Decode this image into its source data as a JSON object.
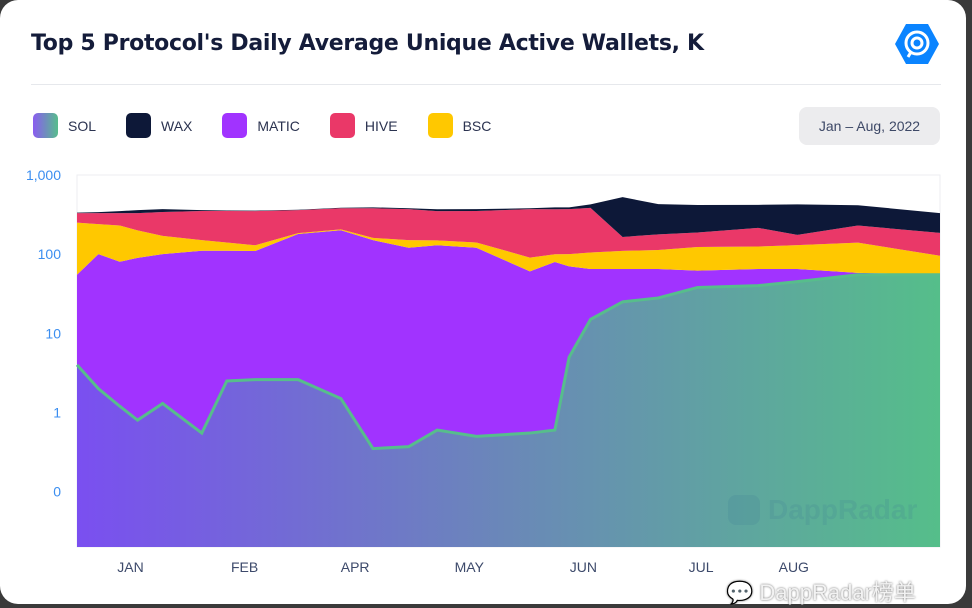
{
  "header": {
    "title": "Top 5 Protocol's Daily Average Unique Active Wallets, K",
    "date_range": "Jan – Aug, 2022"
  },
  "watermarks": {
    "chart": "DappRadar",
    "overlay": "DappRadar榜单"
  },
  "chart_data": {
    "type": "area",
    "stacked": true,
    "title": "Top 5 Protocol's Daily Average Unique Active Wallets, K",
    "yscale": "log",
    "ylim": [
      0.02,
      1000
    ],
    "yticks": [
      {
        "value": 1000,
        "label": "1,000"
      },
      {
        "value": 100,
        "label": "100"
      },
      {
        "value": 10,
        "label": "10"
      },
      {
        "value": 1,
        "label": "1"
      },
      {
        "value": 0.1,
        "label": "0"
      }
    ],
    "xticks": [
      {
        "date": "2022-01-16",
        "label": "JAN"
      },
      {
        "date": "2022-02-17",
        "label": "FEB"
      },
      {
        "date": "2022-03-20",
        "label": "APR"
      },
      {
        "date": "2022-04-21",
        "label": "MAY"
      },
      {
        "date": "2022-05-23",
        "label": "JUN"
      },
      {
        "date": "2022-06-25",
        "label": "JUL"
      },
      {
        "date": "2022-07-21",
        "label": "AUG"
      }
    ],
    "xlim": [
      "2022-01-01",
      "2022-08-31"
    ],
    "legend": "top-left",
    "x": [
      "2022-01-01",
      "2022-01-07",
      "2022-01-13",
      "2022-01-18",
      "2022-01-25",
      "2022-02-05",
      "2022-02-12",
      "2022-02-20",
      "2022-03-04",
      "2022-03-16",
      "2022-03-25",
      "2022-04-04",
      "2022-04-12",
      "2022-04-23",
      "2022-05-08",
      "2022-05-15",
      "2022-05-19",
      "2022-05-25",
      "2022-06-03",
      "2022-06-13",
      "2022-06-24",
      "2022-07-11",
      "2022-07-22",
      "2022-08-08",
      "2022-08-31"
    ],
    "series": [
      {
        "name": "SOL",
        "color": "#57bd8c",
        "values": [
          4,
          2,
          1.2,
          0.8,
          1.3,
          0.55,
          2.5,
          2.6,
          2.6,
          1.5,
          0.35,
          0.37,
          0.6,
          0.5,
          0.55,
          0.6,
          5,
          15,
          25,
          28,
          38,
          40,
          45,
          55,
          55
        ]
      },
      {
        "name": "MATIC",
        "color": "#a133ff",
        "values": [
          51,
          98,
          79,
          89,
          99,
          110,
          108,
          107,
          177,
          199,
          150,
          120,
          129,
          120,
          60,
          79,
          65,
          50,
          40,
          37,
          24,
          25,
          20,
          3,
          0.5
        ]
      },
      {
        "name": "BSC",
        "color": "#ffc800",
        "values": [
          195,
          140,
          150,
          110,
          70,
          40,
          30,
          20,
          5,
          5,
          10,
          30,
          20,
          20,
          30,
          20,
          30,
          40,
          45,
          48,
          61,
          60,
          65,
          82,
          40
        ]
      },
      {
        "name": "HIVE",
        "color": "#ea3868",
        "values": [
          80,
          90,
          100,
          130,
          170,
          200,
          210,
          220,
          175,
          175,
          220,
          220,
          200,
          210,
          280,
          270,
          270,
          280,
          55,
          65,
          65,
          90,
          45,
          90,
          90
        ]
      },
      {
        "name": "WAX",
        "color": "#0d1838",
        "values": [
          5,
          10,
          20,
          30,
          30,
          10,
          5,
          5,
          5,
          5,
          10,
          10,
          20,
          20,
          10,
          20,
          20,
          40,
          360,
          250,
          230,
          205,
          250,
          185,
          145
        ]
      }
    ],
    "legend_order": [
      "SOL",
      "WAX",
      "MATIC",
      "HIVE",
      "BSC"
    ]
  }
}
